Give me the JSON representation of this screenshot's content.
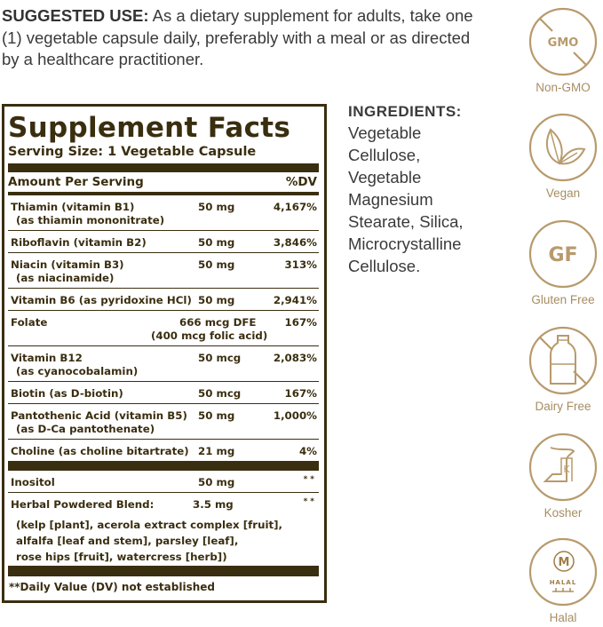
{
  "suggested_use": {
    "label": "SUGGESTED USE:",
    "text": " As a dietary supplement for adults, take one (1) vegetable capsule daily, preferably with a meal or as directed by a healthcare practitioner."
  },
  "facts": {
    "title": "Supplement Facts",
    "serving_size": "Serving Size: 1 Vegetable Capsule",
    "amount_header": "Amount Per Serving",
    "dv_header": "%DV",
    "rows": [
      {
        "name": "Thiamin (vitamin B1)",
        "sub": "(as thiamin mononitrate)",
        "amount": "50 mg",
        "dv": "4,167%"
      },
      {
        "name": "Riboflavin (vitamin B2)",
        "amount": "50 mg",
        "dv": "3,846%"
      },
      {
        "name": "Niacin (vitamin B3)",
        "sub": "(as niacinamide)",
        "amount": "50 mg",
        "dv": "313%"
      },
      {
        "name": "Vitamin B6 (as pyridoxine HCl)",
        "amount": "50 mg",
        "dv": "2,941%"
      },
      {
        "name": "Folate",
        "amount": "666 mcg DFE",
        "amount2": "(400 mcg folic acid)",
        "dv": "167%"
      },
      {
        "name": "Vitamin B12",
        "sub": "(as cyanocobalamin)",
        "amount": "50 mcg",
        "dv": "2,083%"
      },
      {
        "name": "Biotin (as D-biotin)",
        "amount": "50 mcg",
        "dv": "167%"
      },
      {
        "name": "Pantothenic Acid (vitamin B5)",
        "sub": "(as D-Ca pantothenate)",
        "amount": "50 mg",
        "dv": "1,000%"
      },
      {
        "name": "Choline (as choline bitartrate)",
        "amount": "21 mg",
        "dv": "4%"
      }
    ],
    "other_rows": [
      {
        "name": "Inositol",
        "amount": "50 mg",
        "dv": "**"
      },
      {
        "name": "Herbal Powdered Blend:",
        "amount": "3.5 mg",
        "dv": "**",
        "blend_lines": [
          "(kelp [plant], acerola extract complex [fruit],",
          "alfalfa [leaf and stem], parsley [leaf],",
          "rose hips [fruit], watercress [herb])"
        ]
      }
    ],
    "footnote": "**Daily Value (DV) not established"
  },
  "ingredients": {
    "heading": "INGREDIENTS:",
    "lines": [
      "Vegetable",
      "Cellulose,",
      "Vegetable",
      "Magnesium",
      "Stearate, Silica,",
      "Microcrystalline",
      "Cellulose."
    ]
  },
  "badges": [
    {
      "label": "Non-GMO",
      "icon": "non-gmo-icon",
      "icon_text": "GMO"
    },
    {
      "label": "Vegan",
      "icon": "leaf-icon"
    },
    {
      "label": "Gluten Free",
      "icon": "gluten-free-icon",
      "icon_text": "GF"
    },
    {
      "label": "Dairy Free",
      "icon": "milk-bottle-crossed-icon"
    },
    {
      "label": "Kosher",
      "icon": "kosher-icon",
      "icon_text": "K"
    },
    {
      "label": "Halal",
      "icon": "halal-icon",
      "icon_text": "M",
      "logo_text": "HALAL"
    }
  ],
  "colors": {
    "label_brown": "#3a2e10",
    "badge_gold": "#b89a6c",
    "text": "#3a3a3a"
  }
}
